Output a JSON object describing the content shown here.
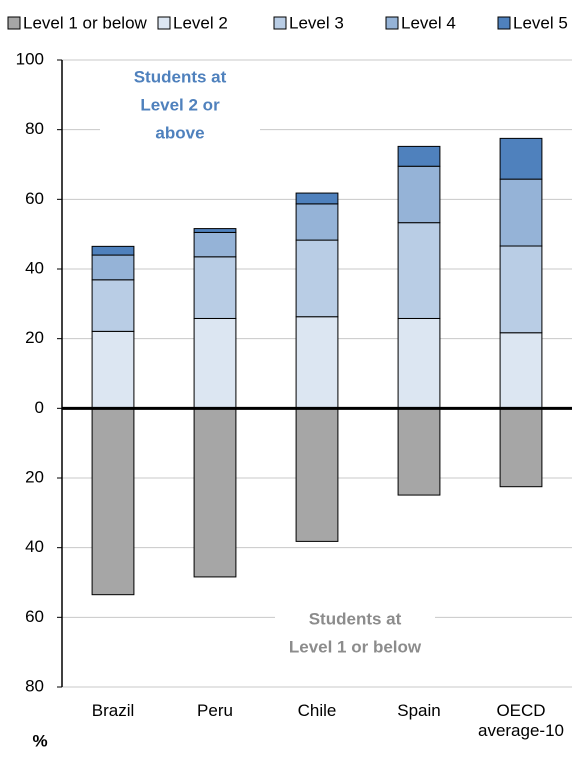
{
  "chart_data": {
    "type": "diverging_stacked_bar",
    "categories": [
      "Brazil",
      "Peru",
      "Chile",
      "Spain",
      "OECD average-10"
    ],
    "series": [
      {
        "name": "Level 1 or below",
        "color": "#a6a6a6",
        "values": [
          -53.5,
          -48.4,
          -38.2,
          -24.9,
          -22.5
        ]
      },
      {
        "name": "Level 2",
        "color": "#dce6f2",
        "values": [
          22.1,
          25.8,
          26.3,
          25.8,
          21.7
        ]
      },
      {
        "name": "Level 3",
        "color": "#b9cde5",
        "values": [
          14.8,
          17.7,
          22.0,
          27.5,
          24.9
        ]
      },
      {
        "name": "Level 4",
        "color": "#95b3d7",
        "values": [
          7.1,
          7.0,
          10.4,
          16.2,
          19.2
        ]
      },
      {
        "name": "Level 5",
        "color": "#4f81bd",
        "values": [
          2.5,
          1.1,
          3.1,
          5.7,
          11.7
        ]
      }
    ],
    "ylim": [
      -80,
      100
    ],
    "yticks": [
      {
        "value": -80,
        "label": "80"
      },
      {
        "value": -60,
        "label": "60"
      },
      {
        "value": -40,
        "label": "40"
      },
      {
        "value": -20,
        "label": "20"
      },
      0,
      20,
      40,
      60,
      80,
      100
    ],
    "ylabel": "%",
    "grid": true,
    "legend": "top",
    "annotations": [
      {
        "lines": [
          "Students at",
          "Level 2 or",
          "above"
        ],
        "color": "#4f81bd"
      },
      {
        "lines": [
          "Students at",
          "Level 1 or below"
        ],
        "color": "#8c8c8c"
      }
    ]
  }
}
